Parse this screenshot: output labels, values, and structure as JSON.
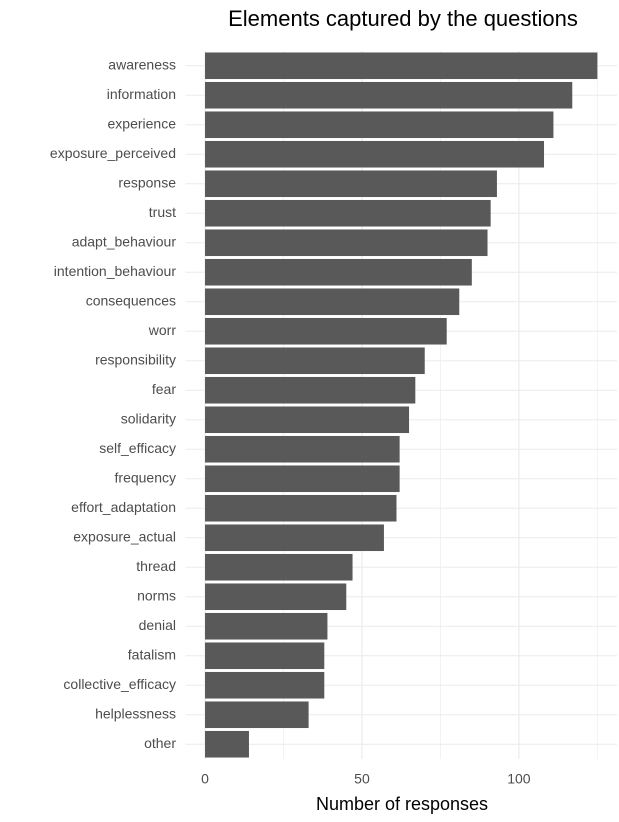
{
  "chart_data": {
    "type": "hbar",
    "title": "Elements captured by the questions",
    "x_label": "Number of responses",
    "categories": [
      "awareness",
      "information",
      "experience",
      "exposure_perceived",
      "response",
      "trust",
      "adapt_behaviour",
      "intention_behaviour",
      "consequences",
      "worr",
      "responsibility",
      "fear",
      "solidarity",
      "self_efficacy",
      "frequency",
      "effort_adaptation",
      "exposure_actual",
      "thread",
      "norms",
      "denial",
      "fatalism",
      "collective_efficacy",
      "helplessness",
      "other"
    ],
    "values": [
      125,
      117,
      111,
      108,
      93,
      91,
      90,
      85,
      81,
      77,
      70,
      67,
      65,
      62,
      62,
      61,
      57,
      47,
      45,
      39,
      38,
      38,
      33,
      14
    ],
    "color": "#595959",
    "xlim": [
      -6.25,
      131.25
    ],
    "xticks": [
      0,
      50,
      100
    ],
    "minor_xticks": [
      25,
      75,
      125
    ],
    "grid": true
  }
}
